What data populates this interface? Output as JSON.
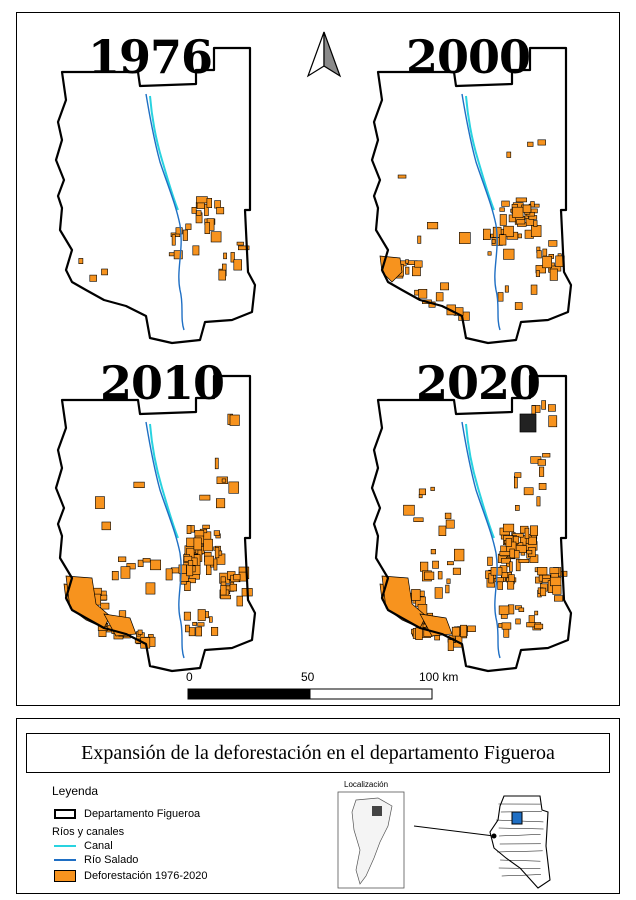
{
  "panels": [
    {
      "year": "1976"
    },
    {
      "year": "2000"
    },
    {
      "year": "2010"
    },
    {
      "year": "2020"
    }
  ],
  "scale_bar": {
    "labels": [
      "0",
      "50",
      "100 km"
    ]
  },
  "title": "Expansión de la deforestación en el departamento Figueroa",
  "legend": {
    "heading": "Leyenda",
    "items": {
      "department": "Departamento Figueroa",
      "rivers_group": "Ríos y canales",
      "canal": "Canal",
      "river": "Río Salado",
      "deforestation": "Deforestación 1976-2020"
    }
  },
  "location_map": {
    "label": "Localización"
  },
  "colors": {
    "canal": "#29d3e0",
    "river": "#1f6fc4",
    "deforestation": "#f7931e",
    "boundary": "#000000"
  }
}
